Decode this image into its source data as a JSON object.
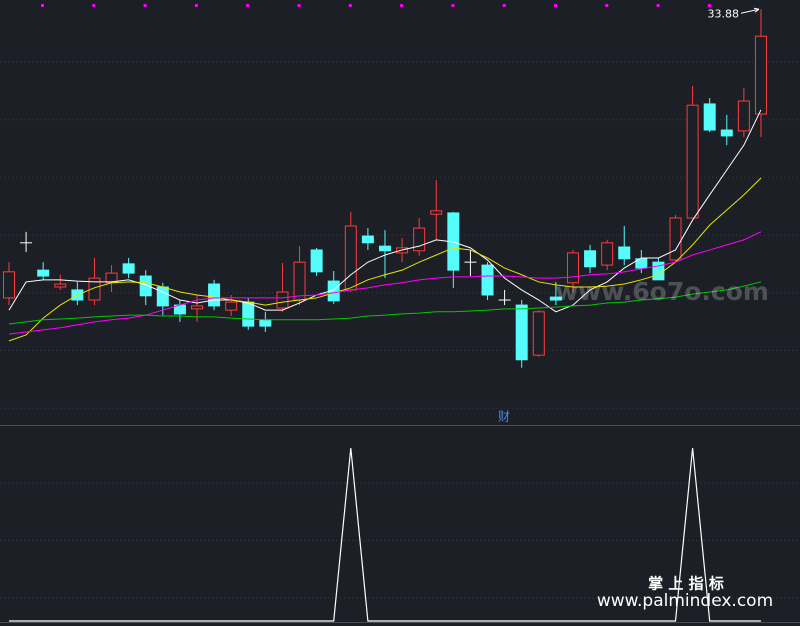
{
  "chart_data": [
    {
      "type": "candlestick",
      "ylim": [
        24.0,
        34.1
      ],
      "grid": true,
      "up_color": "#ff3b3b",
      "down_color": "#54fcfc",
      "doji_color": "#ffffff",
      "open": [
        27.02,
        28.33,
        27.68,
        27.28,
        27.21,
        26.97,
        27.38,
        27.83,
        27.54,
        27.28,
        26.85,
        26.76,
        27.35,
        26.73,
        26.92,
        26.5,
        26.78,
        26.97,
        28.16,
        27.42,
        27.21,
        28.49,
        28.25,
        28.09,
        28.14,
        29.01,
        29.04,
        27.87,
        27.8,
        26.97,
        26.85,
        25.66,
        27.04,
        27.38,
        28.14,
        27.8,
        28.23,
        27.95,
        27.87,
        27.92,
        28.92,
        31.63,
        31.01,
        30.99,
        31.39
      ],
      "close": [
        27.64,
        28.33,
        27.54,
        27.35,
        26.97,
        27.49,
        27.61,
        27.61,
        27.07,
        26.83,
        26.64,
        26.83,
        26.83,
        26.92,
        26.35,
        26.35,
        27.16,
        27.87,
        27.64,
        26.95,
        28.73,
        28.33,
        28.14,
        28.21,
        28.68,
        29.09,
        27.68,
        27.87,
        27.09,
        26.97,
        25.55,
        26.69,
        26.97,
        28.09,
        27.76,
        28.33,
        27.95,
        27.73,
        27.45,
        28.92,
        31.6,
        31.01,
        30.87,
        31.7,
        33.24
      ],
      "high": [
        27.87,
        28.59,
        27.87,
        27.57,
        27.4,
        27.97,
        27.8,
        27.97,
        27.68,
        27.38,
        26.97,
        27.09,
        27.45,
        27.09,
        27.02,
        26.69,
        27.85,
        28.25,
        28.21,
        27.66,
        29.06,
        28.68,
        28.63,
        28.44,
        28.92,
        29.82,
        29.06,
        28.16,
        27.87,
        27.21,
        26.97,
        26.73,
        27.4,
        28.16,
        28.28,
        28.4,
        28.73,
        28.16,
        27.97,
        28.99,
        32.06,
        31.77,
        31.37,
        32.01,
        33.88
      ],
      "low": [
        26.85,
        28.11,
        27.45,
        27.21,
        26.85,
        26.85,
        27.16,
        27.49,
        26.85,
        26.61,
        26.45,
        26.45,
        26.73,
        26.59,
        26.26,
        26.21,
        26.69,
        26.85,
        27.54,
        26.88,
        27.16,
        28.16,
        27.49,
        27.87,
        28.02,
        28.4,
        27.26,
        27.54,
        26.97,
        26.85,
        25.36,
        25.62,
        26.85,
        27.16,
        27.61,
        27.68,
        27.8,
        27.61,
        27.45,
        27.85,
        28.92,
        30.96,
        30.65,
        30.84,
        30.84
      ],
      "series": [
        {
          "color": "#ffffff",
          "values": [
            26.73,
            27.4,
            27.45,
            27.45,
            27.42,
            27.4,
            27.4,
            27.45,
            27.33,
            27.16,
            26.97,
            26.9,
            26.97,
            26.97,
            26.9,
            26.73,
            26.73,
            26.9,
            27.09,
            27.21,
            27.57,
            27.87,
            28.04,
            28.16,
            28.25,
            28.4,
            28.35,
            28.21,
            27.92,
            27.49,
            27.21,
            26.97,
            26.69,
            26.85,
            27.21,
            27.4,
            27.73,
            27.97,
            27.97,
            28.16,
            28.87,
            29.47,
            30.06,
            30.65,
            31.49
          ]
        },
        {
          "color": "#e6e600",
          "values": [
            26.0,
            26.14,
            26.54,
            26.85,
            27.09,
            27.26,
            27.38,
            27.4,
            27.38,
            27.28,
            27.16,
            27.09,
            27.04,
            26.97,
            26.92,
            26.85,
            26.92,
            26.97,
            27.02,
            27.14,
            27.26,
            27.45,
            27.57,
            27.68,
            27.87,
            28.04,
            28.21,
            28.16,
            27.97,
            27.73,
            27.57,
            27.4,
            27.33,
            27.28,
            27.28,
            27.3,
            27.35,
            27.45,
            27.57,
            27.87,
            28.28,
            28.75,
            29.11,
            29.47,
            29.87
          ]
        },
        {
          "color": "#ff00ff",
          "values": [
            26.16,
            26.21,
            26.26,
            26.31,
            26.38,
            26.45,
            26.5,
            26.54,
            26.61,
            26.73,
            26.85,
            26.97,
            27.02,
            27.02,
            27.02,
            27.02,
            27.02,
            27.07,
            27.09,
            27.14,
            27.21,
            27.26,
            27.33,
            27.38,
            27.45,
            27.49,
            27.52,
            27.52,
            27.54,
            27.54,
            27.52,
            27.49,
            27.49,
            27.52,
            27.57,
            27.59,
            27.64,
            27.71,
            27.78,
            27.87,
            28.04,
            28.16,
            28.28,
            28.4,
            28.59
          ]
        },
        {
          "color": "#00c800",
          "values": [
            26.4,
            26.45,
            26.5,
            26.52,
            26.54,
            26.57,
            26.59,
            26.61,
            26.61,
            26.59,
            26.59,
            26.57,
            26.57,
            26.54,
            26.52,
            26.5,
            26.5,
            26.5,
            26.5,
            26.52,
            26.54,
            26.59,
            26.61,
            26.64,
            26.66,
            26.69,
            26.69,
            26.71,
            26.73,
            26.76,
            26.76,
            26.78,
            26.8,
            26.83,
            26.85,
            26.9,
            26.92,
            26.97,
            27.0,
            27.04,
            27.11,
            27.16,
            27.21,
            27.3,
            27.4
          ]
        }
      ]
    },
    {
      "type": "line",
      "title": "财",
      "title_color": "#3d8ee8",
      "ylim": [
        0,
        1
      ],
      "grid": true,
      "color": "#ffffff",
      "values": [
        0,
        0,
        0,
        0,
        0,
        0,
        0,
        0,
        0,
        0,
        0,
        0,
        0,
        0,
        0,
        0,
        0,
        0,
        0,
        0,
        1,
        0,
        0,
        0,
        0,
        0,
        0,
        0,
        0,
        0,
        0,
        0,
        0,
        0,
        0,
        0,
        0,
        0,
        0,
        0,
        1,
        0,
        0,
        0,
        0
      ]
    }
  ],
  "watermarks": [
    "www.6o7o.com",
    "掌 上 指 标",
    "www.palmindex.com"
  ]
}
